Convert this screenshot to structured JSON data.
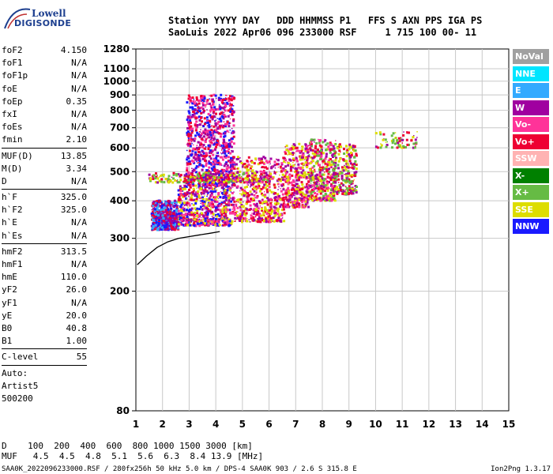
{
  "logo": {
    "line1": "Lowell",
    "line2": "DIGISONDE"
  },
  "header": {
    "line1": "Station YYYY DAY   DDD HHMMSS P1   FFS S AXN PPS IGA PS",
    "line2": "SaoLuis 2022 Apr06 096 233000 RSF     1 715 100 00- 11"
  },
  "params": [
    {
      "name": "foF2",
      "value": "4.150"
    },
    {
      "name": "foF1",
      "value": "N/A"
    },
    {
      "name": "foF1p",
      "value": "N/A"
    },
    {
      "name": "foE",
      "value": "N/A"
    },
    {
      "name": "foEp",
      "value": "0.35"
    },
    {
      "name": "fxI",
      "value": "N/A"
    },
    {
      "name": "foEs",
      "value": "N/A"
    },
    {
      "name": "fmin",
      "value": "2.10"
    },
    {
      "sep": true
    },
    {
      "name": "MUF(D)",
      "value": "13.85"
    },
    {
      "name": "M(D)",
      "value": "3.34"
    },
    {
      "name": "D",
      "value": "N/A"
    },
    {
      "sep": true
    },
    {
      "name": "h`F",
      "value": "325.0"
    },
    {
      "name": "h`F2",
      "value": "325.0"
    },
    {
      "name": "h`E",
      "value": "N/A"
    },
    {
      "name": "h`Es",
      "value": "N/A"
    },
    {
      "sep": true
    },
    {
      "name": "hmF2",
      "value": "313.5"
    },
    {
      "name": "hmF1",
      "value": "N/A"
    },
    {
      "name": "hmE",
      "value": "110.0"
    },
    {
      "name": "yF2",
      "value": "26.0"
    },
    {
      "name": "yF1",
      "value": "N/A"
    },
    {
      "name": "yE",
      "value": "20.0"
    },
    {
      "name": "B0",
      "value": "40.8"
    },
    {
      "name": "B1",
      "value": "1.00"
    },
    {
      "sep": true
    },
    {
      "name": "C-level",
      "value": "55"
    },
    {
      "sep": true
    }
  ],
  "auto": {
    "line1": "Auto:",
    "line2": "Artist5",
    "line3": "500200"
  },
  "legend": [
    {
      "label": "NoVal",
      "color": "#a0a0a0"
    },
    {
      "label": "NNE",
      "color": "#00e5ff"
    },
    {
      "label": "E",
      "color": "#33aaff"
    },
    {
      "label": "W",
      "color": "#a000a0"
    },
    {
      "label": "Vo-",
      "color": "#ff3399"
    },
    {
      "label": "Vo+",
      "color": "#ee0033"
    },
    {
      "label": "SSW",
      "color": "#ffb3b3"
    },
    {
      "label": "X-",
      "color": "#008000"
    },
    {
      "label": "X+",
      "color": "#66bb44"
    },
    {
      "label": "SSE",
      "color": "#dddd00"
    },
    {
      "label": "NNW",
      "color": "#1a1aff"
    }
  ],
  "mufTable": {
    "line1": "D    100  200  400  600  800 1000 1500 3000 [km]",
    "line2": "MUF   4.5  4.5  4.8  5.1  5.6  6.3  8.4 13.9 [MHz]"
  },
  "footer": "SAA0K_2022096233000.RSF / 280fx256h 50 kHz 5.0 km / DPS-4 SAA0K 903 / 2.6 S 315.8 E",
  "version": "Ion2Png 1.3.17",
  "chart_data": {
    "type": "scatter",
    "xlim": [
      1,
      15
    ],
    "x_ticks": [
      1,
      2,
      3,
      4,
      5,
      6,
      7,
      8,
      9,
      10,
      11,
      12,
      13,
      14,
      15
    ],
    "y_ticks": [
      80,
      200,
      300,
      400,
      500,
      600,
      700,
      800,
      900,
      1000,
      1100,
      1280
    ],
    "y_scale": "log",
    "ylim": [
      80,
      1280
    ],
    "grid": true,
    "trace": {
      "x": [
        1.05,
        1.4,
        1.8,
        2.2,
        2.6,
        3.0,
        3.4,
        3.8,
        4.15
      ],
      "y": [
        245,
        262,
        280,
        292,
        300,
        304,
        308,
        312,
        316
      ]
    },
    "clusters": [
      {
        "x_range": [
          1.6,
          2.6
        ],
        "y_range": [
          320,
          400
        ],
        "colors": [
          "#1a1aff",
          "#a000a0",
          "#ee0033",
          "#33aaff"
        ],
        "n": 520
      },
      {
        "x_range": [
          2.6,
          4.6
        ],
        "y_range": [
          330,
          450
        ],
        "colors": [
          "#ee0033",
          "#a000a0",
          "#ff3399",
          "#1a1aff",
          "#dddd00"
        ],
        "n": 650
      },
      {
        "x_range": [
          2.9,
          4.7
        ],
        "y_range": [
          450,
          900
        ],
        "colors": [
          "#a000a0",
          "#ff3399",
          "#ee0033",
          "#1a1aff"
        ],
        "n": 950
      },
      {
        "x_range": [
          1.5,
          6.0
        ],
        "y_range": [
          460,
          495
        ],
        "colors": [
          "#66bb44",
          "#dddd00",
          "#a000a0",
          "#ee0033"
        ],
        "n": 260
      },
      {
        "x_range": [
          4.6,
          6.6
        ],
        "y_range": [
          340,
          560
        ],
        "colors": [
          "#ee0033",
          "#ff3399",
          "#a000a0",
          "#dddd00"
        ],
        "n": 600
      },
      {
        "x_range": [
          6.6,
          7.5
        ],
        "y_range": [
          380,
          620
        ],
        "colors": [
          "#ee0033",
          "#ff3399",
          "#a000a0",
          "#dddd00"
        ],
        "n": 380
      },
      {
        "x_range": [
          7.5,
          8.5
        ],
        "y_range": [
          400,
          640
        ],
        "colors": [
          "#ee0033",
          "#ff3399",
          "#a000a0",
          "#dddd00",
          "#66bb44"
        ],
        "n": 420
      },
      {
        "x_range": [
          8.4,
          9.3
        ],
        "y_range": [
          420,
          620
        ],
        "colors": [
          "#dddd00",
          "#a000a0",
          "#ee0033",
          "#66bb44"
        ],
        "n": 260
      },
      {
        "x_range": [
          10.0,
          11.6
        ],
        "y_range": [
          600,
          680
        ],
        "colors": [
          "#dddd00",
          "#a000a0",
          "#ee0033",
          "#66bb44"
        ],
        "n": 70
      }
    ]
  }
}
